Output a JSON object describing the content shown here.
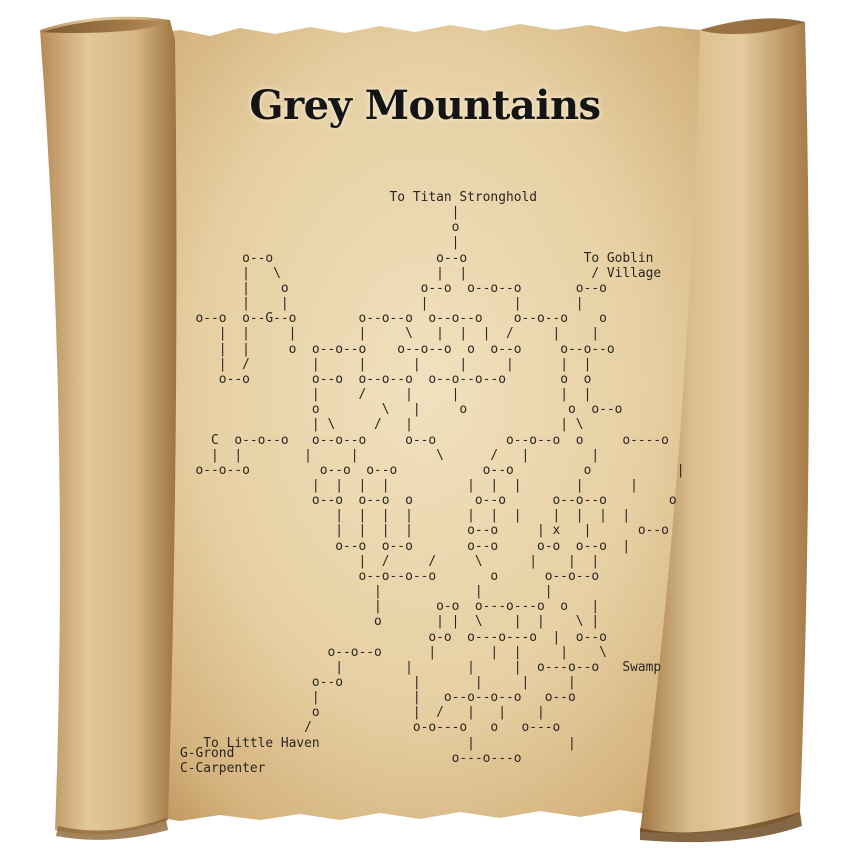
{
  "title": "Grey Mountains",
  "map_rows": [
    "                           To Titan Stronghold",
    "                                   |",
    "                                   o",
    "                                   |",
    "        o--o                     o--o               To Goblin",
    "        |   \\                    |  |                / Village",
    "        |    o                 o--o  o--o--o       o--o",
    "        |    |                 |           |       |",
    "  o--o  o--G--o        o--o--o  o--o--o    o--o--o    o",
    "     |  |     |        |     \\   |  |  |  /     |    |",
    "     |  |     o  o--o--o    o--o--o  o  o--o     o--o--o",
    "     |  /        |     |      |     |     |      |  |",
    "     o--o        o--o  o--o--o  o--o--o--o       o  o",
    "                 |     /     |     |             |  |",
    "                 o        \\   |     o             o  o--o",
    "                 | \\     /   |                   | \\",
    "    C  o--o--o   o--o--o     o--o         o--o--o  o     o----o",
    "    |  |        |     |          \\      /   |        |",
    "  o--o--o         o--o  o--o           o--o         o           |",
    "                 |  |  |  |          |  |  |       |      |",
    "                 o--o  o--o  o        o--o      o--o--o        o",
    "                    |  |  |  |       |  |  |    |  |  |  |",
    "                    |  |  |  |       o--o     | x   |      o--o",
    "                    o--o  o--o       o--o     o-o  o--o  |",
    "                       |  /     /     \\      |    |  |",
    "                       o--o--o--o       o      o--o--o",
    "                         |            |        |",
    "                         |       o-o  o---o---o  o   |",
    "                         o       | |  \\    |  |    \\ |",
    "                                o-o  o---o---o  |  o--o",
    "                   o--o--o      |       |  |     |    \\",
    "                    |        |       |     |  o---o--o   Swamp",
    "                 o--o         |       |     |     |",
    "                 |            |   o--o--o--o   o--o",
    "                 o            |  /   |   |    |",
    "                /             o-o---o   o   o---o",
    "   To Little Haven                   |            |",
    "                                   o---o---o"
  ],
  "legend": [
    "G-Grond",
    "C-Carpenter"
  ],
  "colors": {
    "parchment": "#e4cfa3",
    "parchment_edge": "#b88f5c",
    "ink": "#2a2520"
  }
}
